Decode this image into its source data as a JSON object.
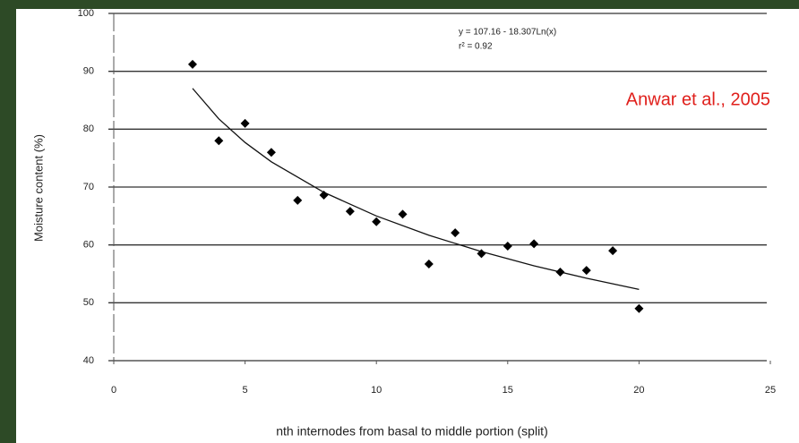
{
  "chart_data": {
    "type": "scatter",
    "x_label": "nth internodes from basal to middle portion  (split)",
    "y_label": "Moisture content (%)",
    "annotation": "Anwar et al., 2005",
    "x": [
      3,
      4,
      5,
      6,
      7,
      8,
      9,
      10,
      11,
      12,
      13,
      14,
      15,
      16,
      17,
      18,
      19,
      20
    ],
    "values": [
      91.2,
      78,
      81,
      76,
      67.7,
      68.6,
      65.8,
      64,
      65.3,
      56.7,
      62.1,
      58.5,
      59.8,
      60.2,
      55.3,
      55.6,
      59,
      49
    ],
    "color": "#000000",
    "trendline": {
      "equation": "y = 107.16 - 18.307Ln(x)",
      "r2": "r² = 0.92",
      "x": [
        3,
        4,
        5,
        6,
        8,
        10,
        12,
        14,
        16,
        18,
        20
      ],
      "values": [
        87.05,
        81.78,
        77.7,
        74.36,
        69.09,
        65,
        61.67,
        58.85,
        56.4,
        54.25,
        52.32
      ]
    },
    "xlim": [
      0,
      25
    ],
    "xticks": [
      0,
      5,
      10,
      15,
      20,
      25
    ],
    "ylim": [
      40,
      100
    ],
    "yticks": [
      40,
      50,
      60,
      70,
      80,
      90,
      100
    ],
    "grid": true
  }
}
